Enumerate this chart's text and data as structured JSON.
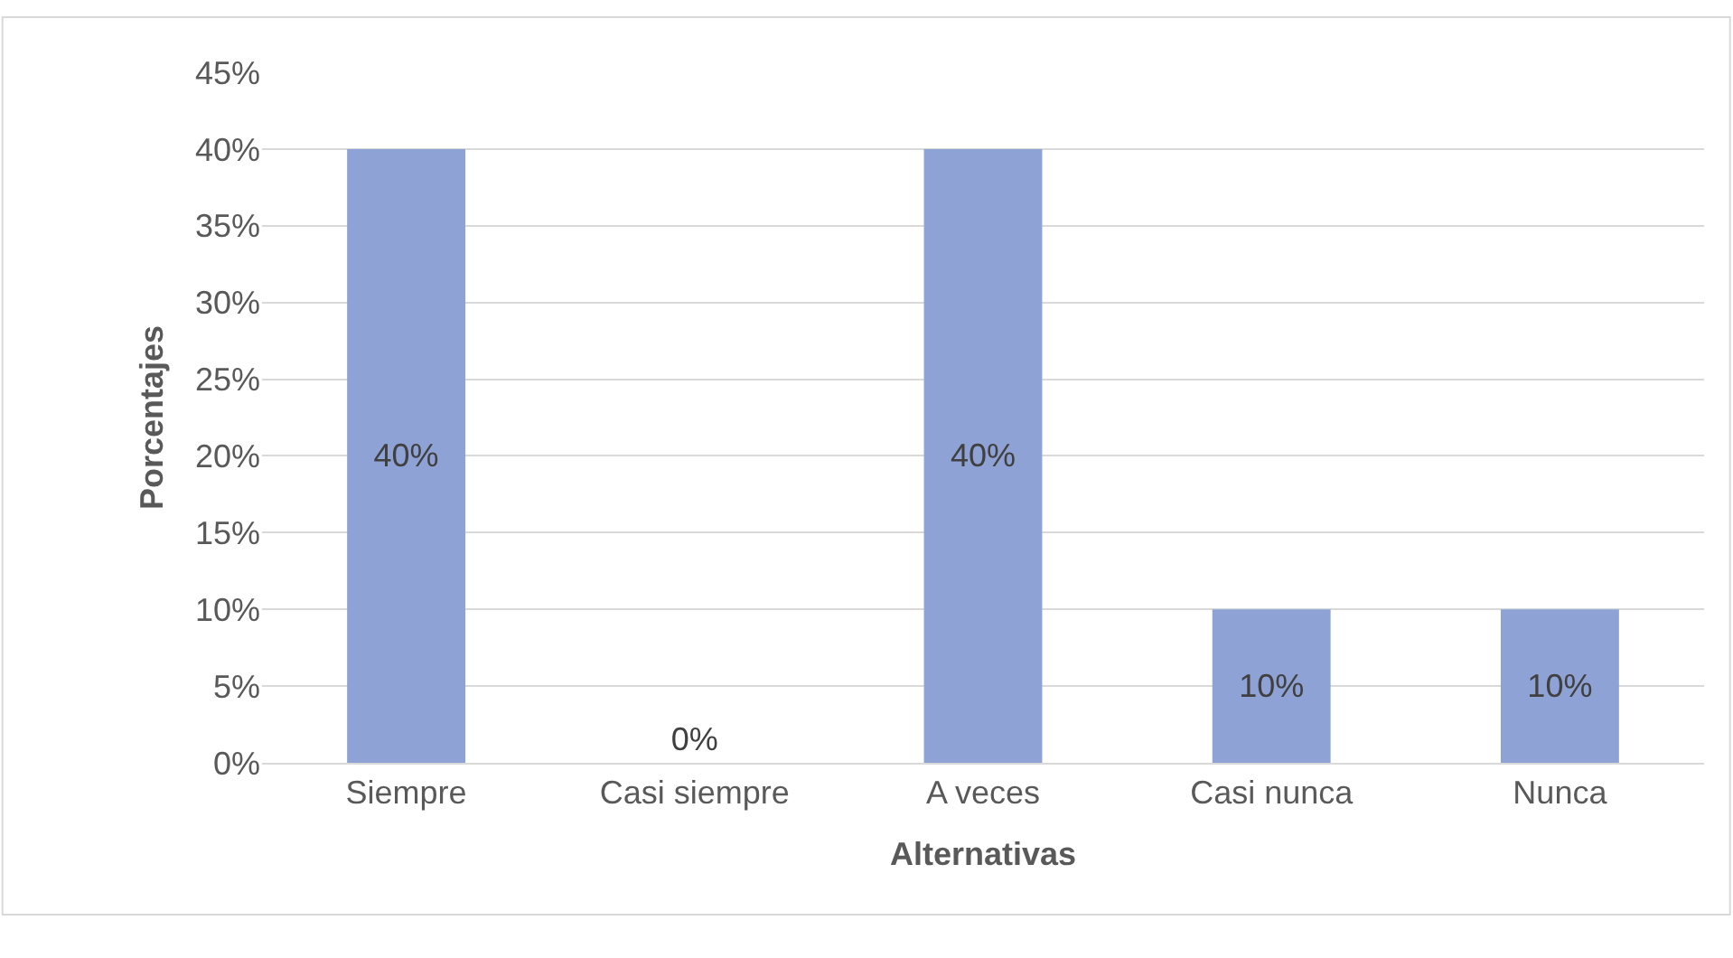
{
  "chart_data": {
    "type": "bar",
    "xlabel": "Alternativas",
    "ylabel": "Porcentajes",
    "categories": [
      "Siempre",
      "Casi siempre",
      "A veces",
      "Casi nunca",
      "Nunca"
    ],
    "values": [
      40,
      0,
      40,
      10,
      10
    ],
    "color": "#8fa2d5",
    "value_labels": [
      "40%",
      "0%",
      "40%",
      "10%",
      "10%"
    ],
    "ylim": [
      0,
      45
    ],
    "yticks": [
      {
        "value": 0,
        "label": "0%"
      },
      {
        "value": 5,
        "label": "5%"
      },
      {
        "value": 10,
        "label": "10%"
      },
      {
        "value": 15,
        "label": "15%"
      },
      {
        "value": 20,
        "label": "20%"
      },
      {
        "value": 25,
        "label": "25%"
      },
      {
        "value": 30,
        "label": "30%"
      },
      {
        "value": 35,
        "label": "35%"
      },
      {
        "value": 40,
        "label": "40%"
      },
      {
        "value": 45,
        "label": "45%"
      }
    ],
    "grid": "y",
    "legend": false
  }
}
